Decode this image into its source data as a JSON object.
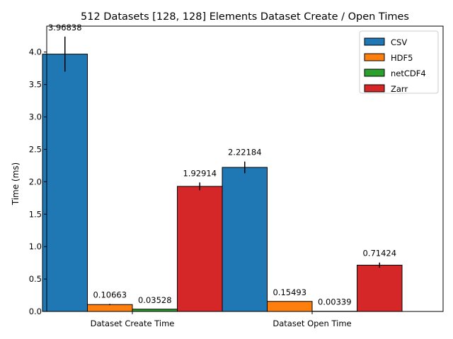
{
  "chart_data": {
    "type": "bar",
    "title": "512 Datasets [128, 128] Elements Dataset Create / Open Times",
    "xlabel": "",
    "ylabel": "Time (ms)",
    "ylim": [
      0,
      4.4
    ],
    "yticks": [
      "0.0",
      "0.5",
      "1.0",
      "1.5",
      "2.0",
      "2.5",
      "3.0",
      "3.5",
      "4.0"
    ],
    "categories": [
      "Dataset Create Time",
      "Dataset Open Time"
    ],
    "grid": false,
    "legend_position": "upper right",
    "series": [
      {
        "name": "CSV",
        "color": "#1f77b4",
        "values": [
          3.96838,
          2.22184
        ],
        "errors": [
          0.27,
          0.09
        ],
        "labels": [
          "3.96838",
          "2.22184"
        ]
      },
      {
        "name": "HDF5",
        "color": "#ff7f0e",
        "values": [
          0.10663,
          0.15493
        ],
        "errors": [
          0.01,
          0.0
        ],
        "labels": [
          "0.10663",
          "0.15493"
        ]
      },
      {
        "name": "netCDF4",
        "color": "#2ca02c",
        "values": [
          0.03528,
          0.00339
        ],
        "errors": [
          0.0,
          0.0
        ],
        "labels": [
          "0.03528",
          "0.00339"
        ]
      },
      {
        "name": "Zarr",
        "color": "#d62728",
        "values": [
          1.92914,
          0.71424
        ],
        "errors": [
          0.06,
          0.04
        ],
        "labels": [
          "1.92914",
          "0.71424"
        ]
      }
    ]
  }
}
